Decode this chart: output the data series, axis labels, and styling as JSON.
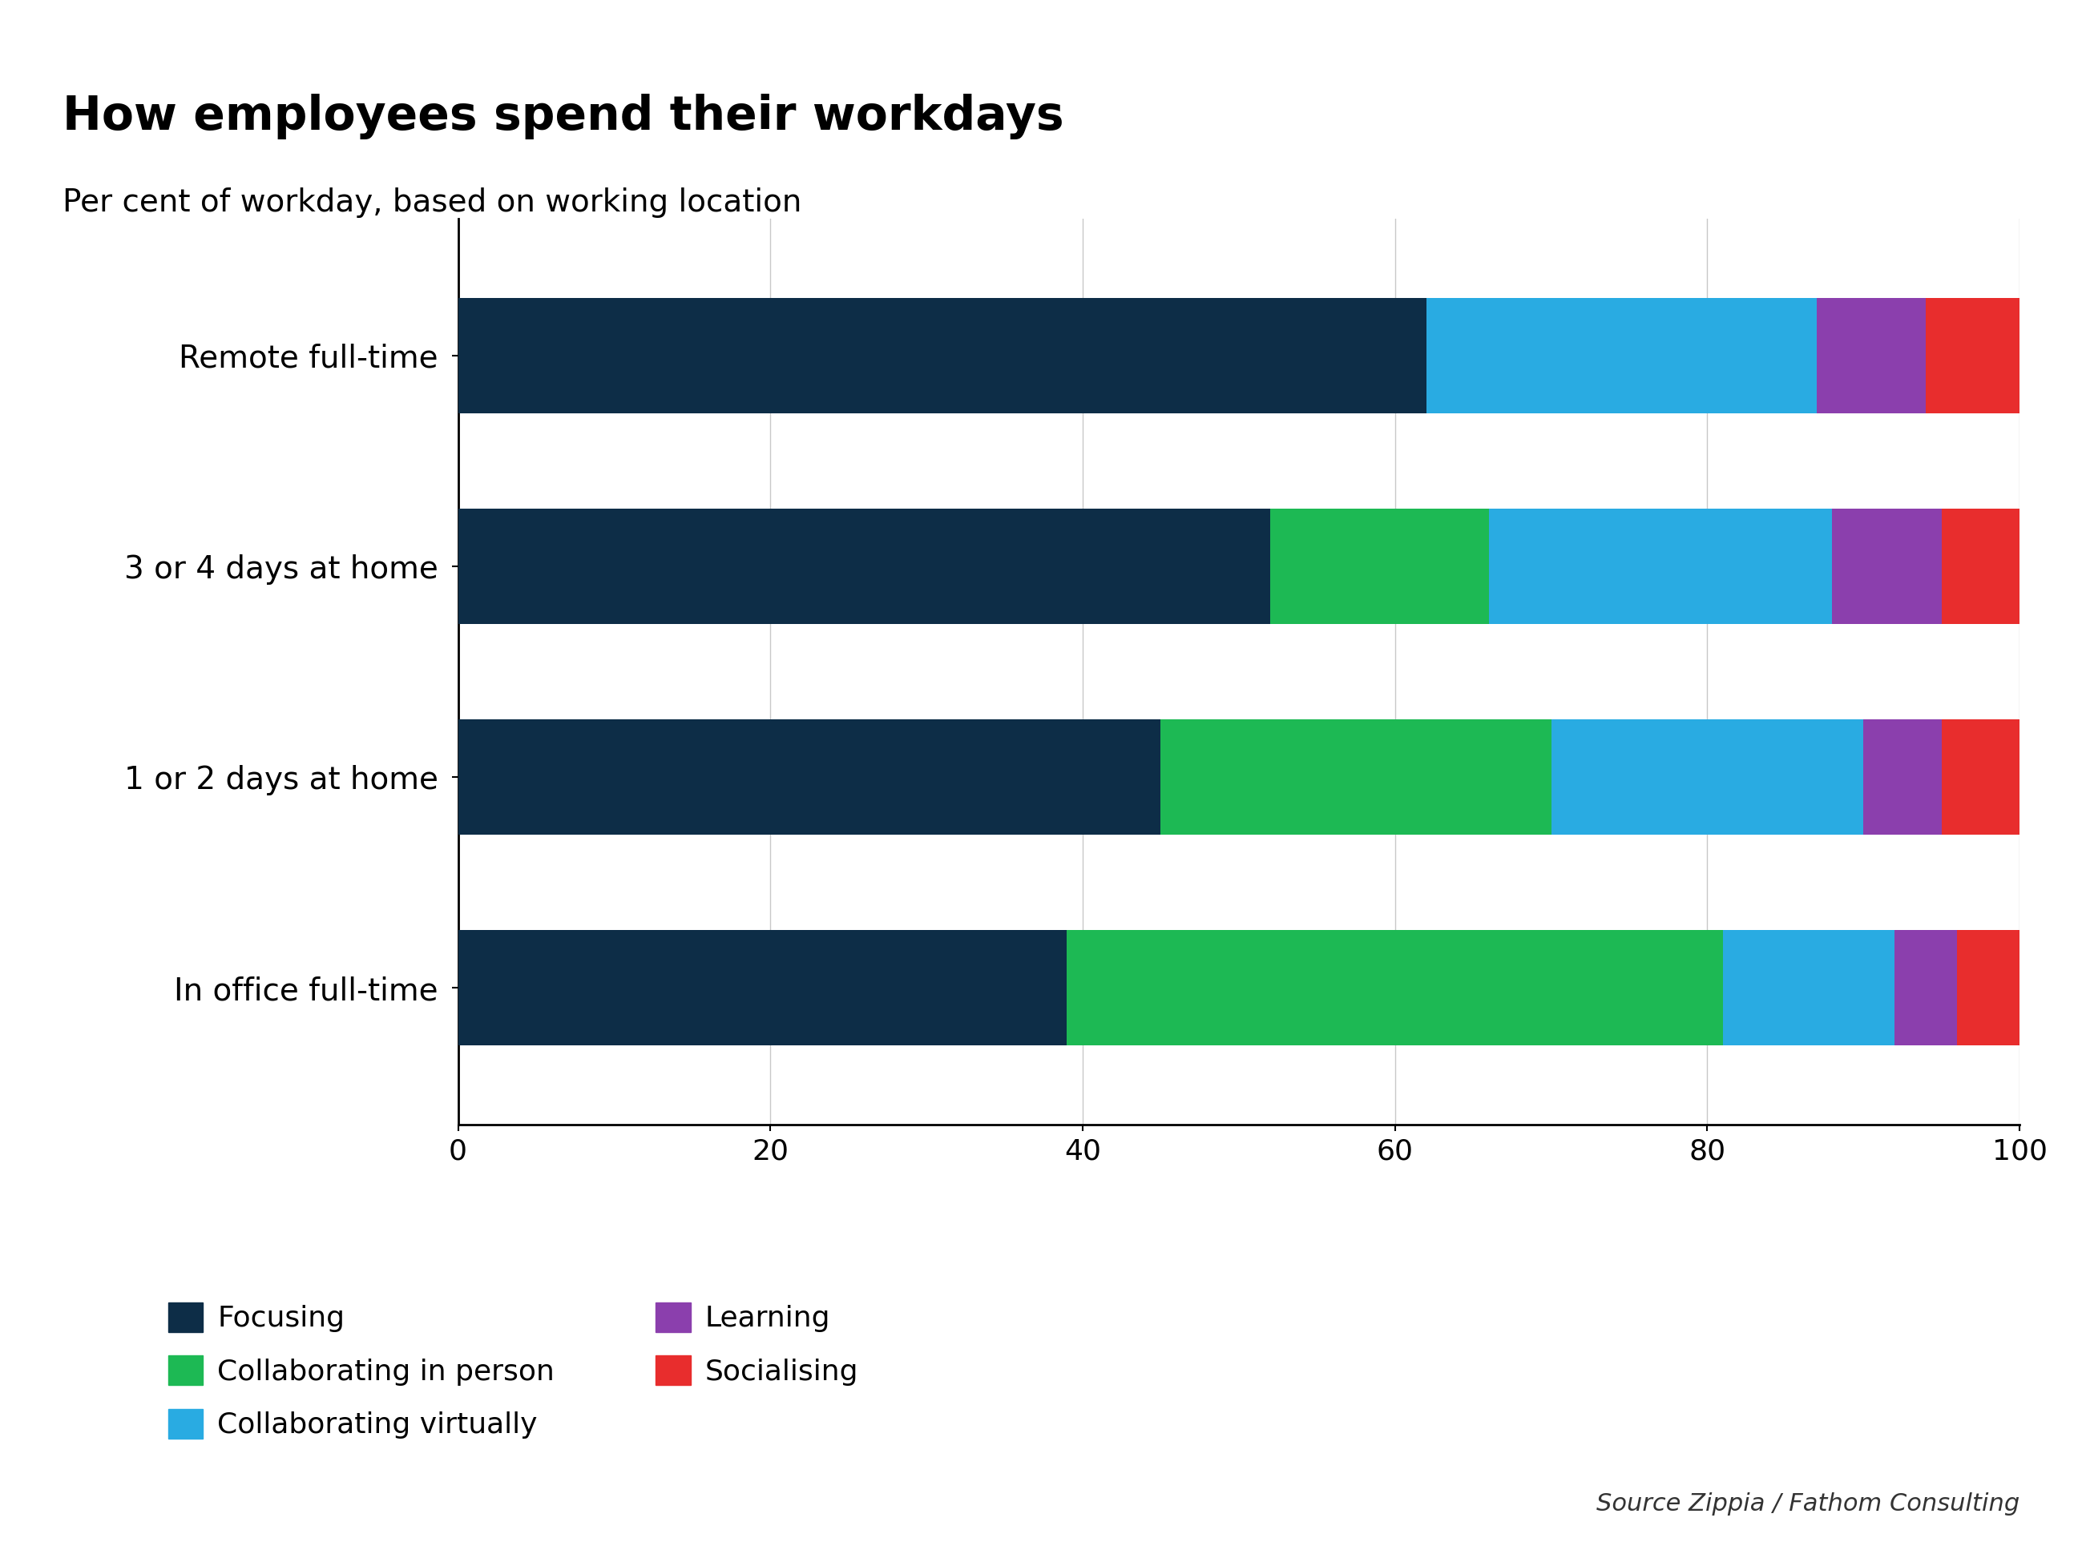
{
  "title": "How employees spend their workdays",
  "subtitle": "Per cent of workday, based on working location",
  "source": "Source Zippia / Fathom Consulting",
  "categories": [
    "Remote full-time",
    "3 or 4 days at home",
    "1 or 2 days at home",
    "In office full-time"
  ],
  "segments": [
    "Focusing",
    "Collaborating in person",
    "Collaborating virtually",
    "Learning",
    "Socialising"
  ],
  "colors": [
    "#0d2d47",
    "#1db954",
    "#29abe2",
    "#8b3fad",
    "#e82d2d"
  ],
  "values": [
    [
      62,
      0,
      25,
      7,
      6
    ],
    [
      52,
      14,
      22,
      7,
      5
    ],
    [
      45,
      25,
      20,
      5,
      5
    ],
    [
      39,
      42,
      11,
      4,
      4
    ]
  ],
  "xlim": [
    0,
    100
  ],
  "xticks": [
    0,
    20,
    40,
    60,
    80,
    100
  ],
  "background_color": "#ffffff",
  "title_fontsize": 42,
  "subtitle_fontsize": 28,
  "tick_fontsize": 26,
  "label_fontsize": 28,
  "legend_fontsize": 26,
  "source_fontsize": 22,
  "bar_height": 0.55
}
